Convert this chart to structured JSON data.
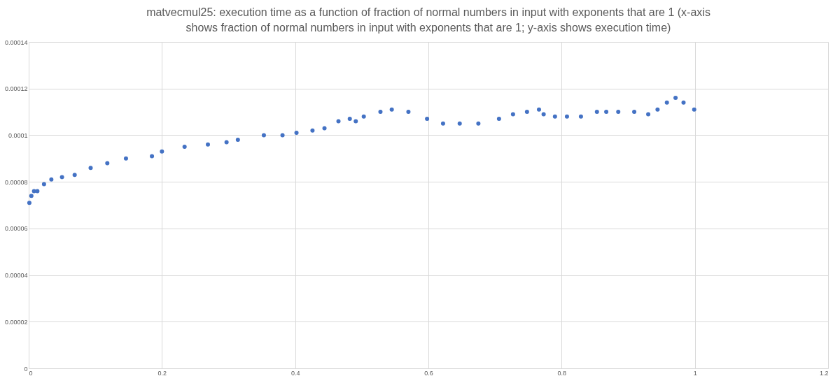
{
  "chart_data": {
    "type": "scatter",
    "title": "matvecmul25: execution time as a function of fraction of normal numbers in input with exponents that are 1 (x-axis shows fraction of normal numbers in input with exponents that are 1; y-axis shows execution time)",
    "x": [
      0.001,
      0.004,
      0.008,
      0.013,
      0.023,
      0.034,
      0.05,
      0.069,
      0.093,
      0.118,
      0.146,
      0.185,
      0.2,
      0.234,
      0.269,
      0.297,
      0.314,
      0.353,
      0.381,
      0.402,
      0.426,
      0.444,
      0.465,
      0.482,
      0.491,
      0.503,
      0.528,
      0.545,
      0.57,
      0.598,
      0.622,
      0.647,
      0.675,
      0.706,
      0.727,
      0.748,
      0.766,
      0.773,
      0.79,
      0.808,
      0.829,
      0.853,
      0.867,
      0.885,
      0.909,
      0.93,
      0.944,
      0.958,
      0.971,
      0.983,
      0.999
    ],
    "series": [
      {
        "color": "#4472c4",
        "values": [
          7.1e-05,
          7.4e-05,
          7.6e-05,
          7.6e-05,
          7.9e-05,
          8.1e-05,
          8.2e-05,
          8.3e-05,
          8.6e-05,
          8.8e-05,
          9e-05,
          9.1e-05,
          9.3e-05,
          9.5e-05,
          9.6e-05,
          9.7e-05,
          9.8e-05,
          0.0001,
          0.0001,
          0.000101,
          0.000102,
          0.000103,
          0.000106,
          0.000107,
          0.000106,
          0.000108,
          0.00011,
          0.000111,
          0.00011,
          0.000107,
          0.000105,
          0.000105,
          0.000105,
          0.000107,
          0.000109,
          0.00011,
          0.000111,
          0.000109,
          0.000108,
          0.000108,
          0.000108,
          0.00011,
          0.00011,
          0.00011,
          0.00011,
          0.000109,
          0.000111,
          0.000114,
          0.000116,
          0.000114,
          0.000111
        ]
      }
    ],
    "xlim": [
      0,
      1.2
    ],
    "xticks": [
      0,
      0.2,
      0.4,
      0.6,
      0.8,
      1,
      1.2
    ],
    "ylim": [
      0,
      0.00014
    ],
    "yticks": [
      0,
      {
        "value": 2e-05,
        "label": "0.00002"
      },
      {
        "value": 4e-05,
        "label": "0.00004"
      },
      {
        "value": 6e-05,
        "label": "0.00006"
      },
      {
        "value": 8e-05,
        "label": "0.00008"
      },
      0.0001,
      0.00012,
      0.00014
    ],
    "grid": true,
    "marker": "circle"
  }
}
